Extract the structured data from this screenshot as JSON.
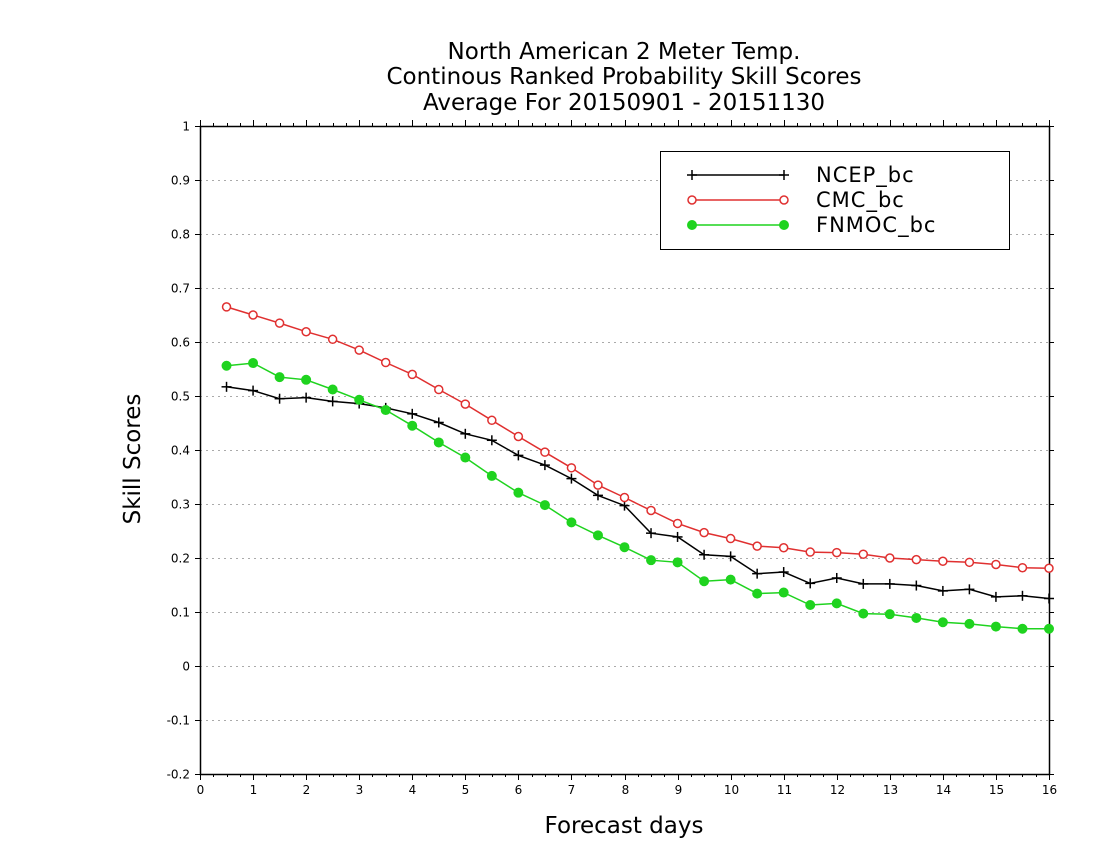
{
  "chart_data": {
    "type": "line",
    "title": [
      "North American 2 Meter Temp.",
      "Continous Ranked Probability Skill Scores",
      "Average For 20150901 - 20151130"
    ],
    "xlabel": "Forecast days",
    "ylabel": "Skill Scores",
    "xlim": [
      0,
      16
    ],
    "ylim": [
      -0.2,
      1
    ],
    "x_ticks": [
      0,
      1,
      2,
      3,
      4,
      5,
      6,
      7,
      8,
      9,
      10,
      11,
      12,
      13,
      14,
      15,
      16
    ],
    "x_tick_labels": [
      "0",
      "1",
      "2",
      "3",
      "4",
      "5",
      "6",
      "7",
      "8",
      "9",
      "10",
      "11",
      "12",
      "13",
      "14",
      "15",
      "16"
    ],
    "y_ticks": [
      -0.2,
      -0.1,
      0,
      0.1,
      0.2,
      0.3,
      0.4,
      0.5,
      0.6,
      0.7,
      0.8,
      0.9,
      1
    ],
    "y_tick_labels": [
      "-0.2",
      "-0.1",
      "0",
      "0.1",
      "0.2",
      "0.3",
      "0.4",
      "0.5",
      "0.6",
      "0.7",
      "0.8",
      "0.9",
      "1"
    ],
    "grid": true,
    "legend_position": "top-right",
    "x": [
      0.5,
      1,
      1.5,
      2,
      2.5,
      3,
      3.5,
      4,
      4.5,
      5,
      5.5,
      6,
      6.5,
      7,
      7.5,
      8,
      8.5,
      9,
      9.5,
      10,
      10.5,
      11,
      11.5,
      12,
      12.5,
      13,
      13.5,
      14,
      14.5,
      15,
      15.5,
      16
    ],
    "series": [
      {
        "name": "NCEP_bc",
        "color": "#000000",
        "marker": "plus",
        "values": [
          0.517,
          0.51,
          0.495,
          0.497,
          0.49,
          0.486,
          0.478,
          0.467,
          0.451,
          0.43,
          0.418,
          0.39,
          0.372,
          0.347,
          0.316,
          0.297,
          0.246,
          0.239,
          0.206,
          0.203,
          0.171,
          0.174,
          0.153,
          0.163,
          0.152,
          0.152,
          0.149,
          0.139,
          0.142,
          0.128,
          0.13,
          0.125
        ]
      },
      {
        "name": "CMC_bc",
        "color": "#e03030",
        "marker": "open-circle",
        "values": [
          0.665,
          0.65,
          0.635,
          0.619,
          0.605,
          0.585,
          0.562,
          0.54,
          0.512,
          0.485,
          0.455,
          0.425,
          0.396,
          0.367,
          0.335,
          0.312,
          0.288,
          0.264,
          0.247,
          0.236,
          0.222,
          0.219,
          0.211,
          0.21,
          0.207,
          0.2,
          0.197,
          0.194,
          0.192,
          0.188,
          0.182,
          0.181
        ]
      },
      {
        "name": "FNMOC_bc",
        "color": "#1fd31f",
        "marker": "filled-circle",
        "values": [
          0.556,
          0.561,
          0.535,
          0.53,
          0.512,
          0.493,
          0.474,
          0.445,
          0.414,
          0.386,
          0.352,
          0.321,
          0.298,
          0.266,
          0.242,
          0.22,
          0.196,
          0.192,
          0.157,
          0.16,
          0.134,
          0.136,
          0.113,
          0.116,
          0.097,
          0.096,
          0.089,
          0.081,
          0.078,
          0.073,
          0.069,
          0.069
        ]
      }
    ]
  }
}
